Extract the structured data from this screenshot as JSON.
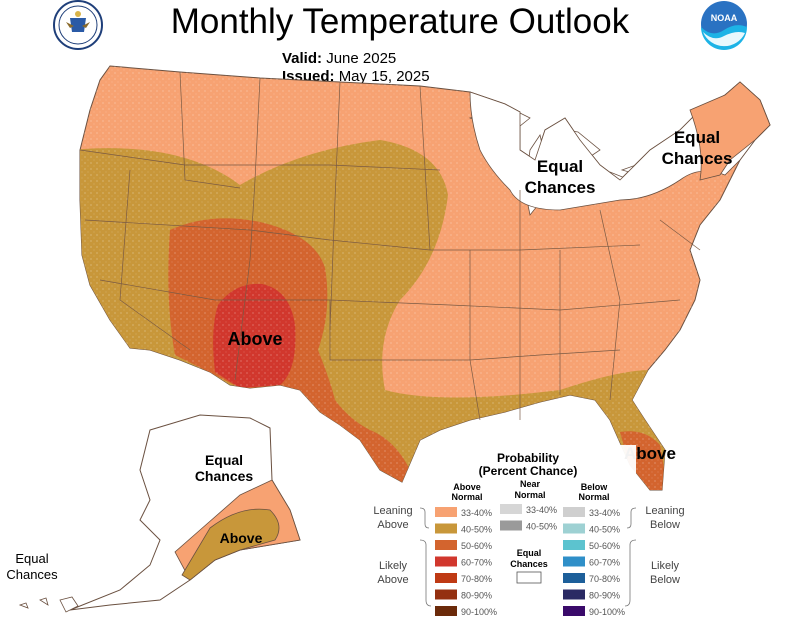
{
  "header": {
    "title": "Monthly Temperature Outlook",
    "valid_label": "Valid:",
    "valid_value": "June 2025",
    "issued_label": "Issued:",
    "issued_value": "May 15, 2025"
  },
  "logos": {
    "left": "Department of Commerce seal",
    "right": "NOAA",
    "noaa_text": "NOAA"
  },
  "map_labels": {
    "above_southwest": "Above",
    "above_florida": "Above",
    "above_alaska": "Above",
    "ec_great_lakes_1": "Equal",
    "ec_great_lakes_2": "Chances",
    "ec_new_england_1": "Equal",
    "ec_new_england_2": "Chances",
    "ec_alaska_1": "Equal",
    "ec_alaska_2": "Chances",
    "ec_hawaii_1": "Equal",
    "ec_hawaii_2": "Chances"
  },
  "legend": {
    "title1": "Probability",
    "title2": "(Percent Chance)",
    "col_above_1": "Above",
    "col_above_2": "Normal",
    "col_near_1": "Near",
    "col_near_2": "Normal",
    "col_below_1": "Below",
    "col_below_2": "Normal",
    "leaning_above_1": "Leaning",
    "leaning_above_2": "Above",
    "likely_above_1": "Likely",
    "likely_above_2": "Above",
    "leaning_below_1": "Leaning",
    "leaning_below_2": "Below",
    "likely_below_1": "Likely",
    "likely_below_2": "Below",
    "equal_1": "Equal",
    "equal_2": "Chances",
    "above_levels": [
      {
        "label": "33-40%",
        "color": "#f7a272"
      },
      {
        "label": "40-50%",
        "color": "#c8973a"
      },
      {
        "label": "50-60%",
        "color": "#d3642e"
      },
      {
        "label": "60-70%",
        "color": "#d1372d"
      },
      {
        "label": "70-80%",
        "color": "#bf3a14"
      },
      {
        "label": "80-90%",
        "color": "#943010"
      },
      {
        "label": "90-100%",
        "color": "#6b2a0a"
      }
    ],
    "near_levels": [
      {
        "label": "33-40%",
        "color": "#d6d6d6"
      },
      {
        "label": "40-50%",
        "color": "#9a9a9a"
      }
    ],
    "below_levels": [
      {
        "label": "33-40%",
        "color": "#cfcfcf"
      },
      {
        "label": "40-50%",
        "color": "#9ed1d3"
      },
      {
        "label": "50-60%",
        "color": "#5cc3cf"
      },
      {
        "label": "60-70%",
        "color": "#2f8fc8"
      },
      {
        "label": "70-80%",
        "color": "#1d5f9a"
      },
      {
        "label": "80-90%",
        "color": "#2a2a64"
      },
      {
        "label": "90-100%",
        "color": "#3a0a6a"
      }
    ]
  },
  "colors": {
    "lean_above": "#f7a272",
    "above_40_50": "#c8973a",
    "above_50_60": "#d3642e",
    "above_60_70": "#d1372d",
    "border": "#7a4a2a"
  }
}
